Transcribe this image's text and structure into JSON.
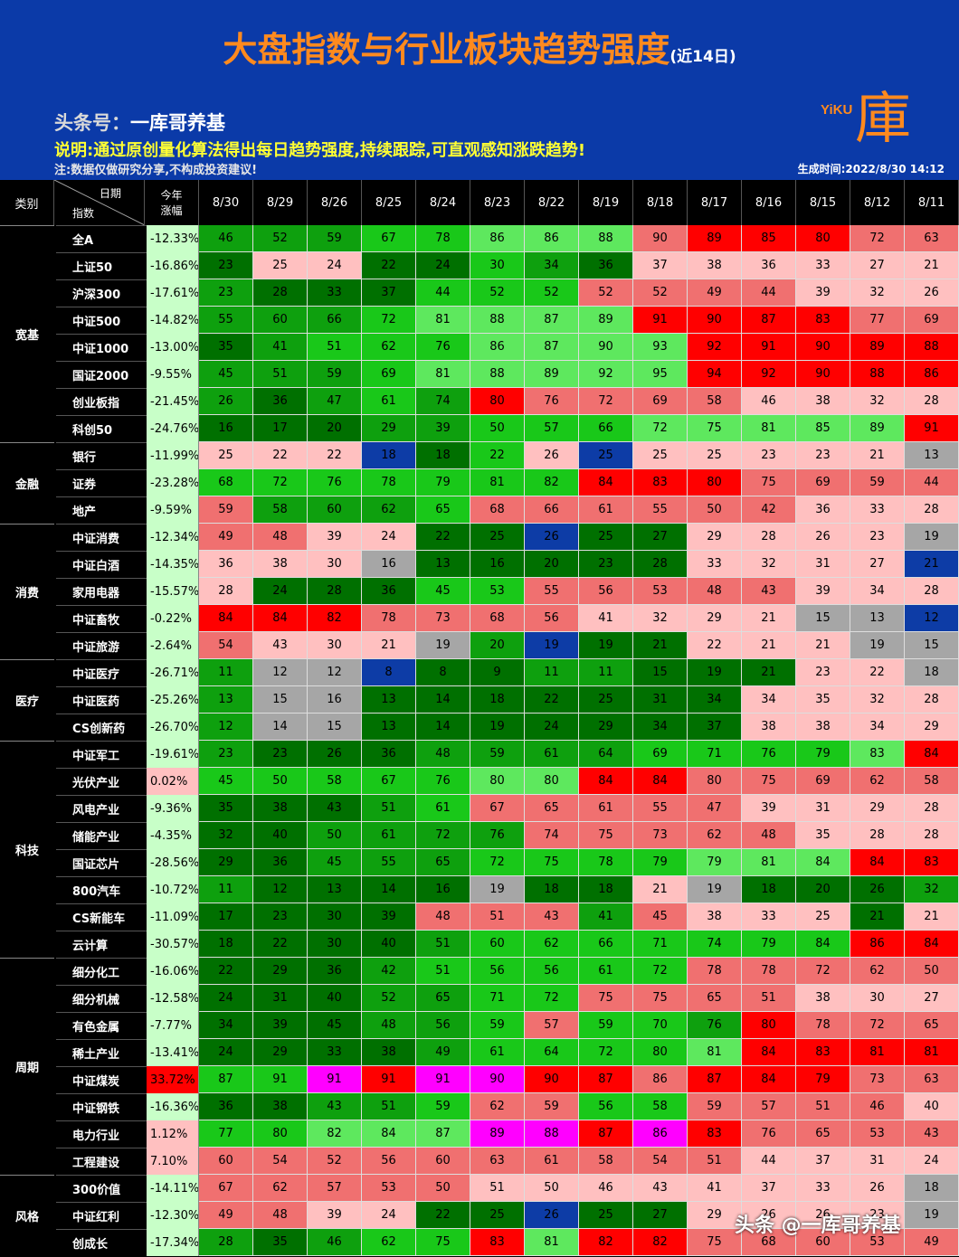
{
  "header": {
    "title": "大盘指数与行业板块趋势强度",
    "title_sub": "(近14日)",
    "author_key": "头条号：",
    "author_name": "一库哥养基",
    "note1": "说明:通过原创量化算法得出每日趋势强度,持续跟踪,可直观感知涨跌趋势!",
    "note2": "注:数据仅做研究分享,不构成投资建议!",
    "generated": "生成时间:2022/8/30 14:12",
    "logo_text": "YiKU",
    "logo_char": "庫"
  },
  "table_header": {
    "category": "类别",
    "date_label": "日期",
    "index_label": "指数",
    "ytd_line1": "今年",
    "ytd_line2": "涨幅",
    "dates": [
      "8/30",
      "8/29",
      "8/26",
      "8/25",
      "8/24",
      "8/23",
      "8/22",
      "8/19",
      "8/18",
      "8/17",
      "8/16",
      "8/15",
      "8/12",
      "8/11"
    ]
  },
  "colors": {
    "G": "#007000",
    "g": "#0ea00e",
    "l": "#19c819",
    "p": "#5ee85e",
    "r": "#ff0000",
    "m": "#f07070",
    "k": "#ffc0c0",
    "s": "#a6a6a6",
    "b": "#0d3ca6",
    "u": "#ff00ff"
  },
  "chart_data": {
    "type": "heatmap",
    "title": "大盘指数与行业板块趋势强度",
    "columns": [
      "8/30",
      "8/29",
      "8/26",
      "8/25",
      "8/24",
      "8/23",
      "8/22",
      "8/19",
      "8/18",
      "8/17",
      "8/16",
      "8/15",
      "8/12",
      "8/11"
    ],
    "groups": [
      {
        "name": "宽基",
        "rows": [
          {
            "name": "全A",
            "ytd": "-12.33%",
            "values": [
              46,
              52,
              59,
              67,
              78,
              86,
              86,
              88,
              90,
              89,
              85,
              80,
              72,
              63
            ],
            "colors": "gggllpppmrrrmm"
          },
          {
            "name": "上证50",
            "ytd": "-16.86%",
            "values": [
              23,
              25,
              24,
              22,
              24,
              30,
              34,
              36,
              37,
              38,
              36,
              33,
              27,
              21
            ],
            "colors": "GkkGGlgGkkkkkk"
          },
          {
            "name": "沪深300",
            "ytd": "-17.61%",
            "values": [
              23,
              28,
              33,
              37,
              44,
              52,
              52,
              52,
              52,
              49,
              44,
              39,
              32,
              26
            ],
            "colors": "gGGGlllmmmmkkk"
          },
          {
            "name": "中证500",
            "ytd": "-14.82%",
            "values": [
              55,
              60,
              66,
              72,
              81,
              88,
              87,
              89,
              91,
              90,
              87,
              83,
              77,
              69
            ],
            "colors": "ggglpppprrrrmm"
          },
          {
            "name": "中证1000",
            "ytd": "-13.00%",
            "values": [
              35,
              41,
              51,
              62,
              76,
              86,
              87,
              90,
              93,
              92,
              91,
              90,
              89,
              88
            ],
            "colors": "Gglllpppprrrrr"
          },
          {
            "name": "国证2000",
            "ytd": "-9.55%",
            "values": [
              45,
              51,
              59,
              69,
              81,
              88,
              89,
              92,
              95,
              94,
              92,
              90,
              88,
              86
            ],
            "colors": "ggglppppprrrrr"
          },
          {
            "name": "创业板指",
            "ytd": "-21.45%",
            "values": [
              26,
              36,
              47,
              61,
              74,
              80,
              76,
              72,
              69,
              58,
              46,
              38,
              32,
              28
            ],
            "colors": "gGglgrmmmmkkkk"
          },
          {
            "name": "科创50",
            "ytd": "-24.76%",
            "values": [
              16,
              17,
              20,
              29,
              39,
              50,
              57,
              66,
              72,
              75,
              81,
              85,
              89,
              91
            ],
            "colors": "GGGgglllpppppr"
          }
        ]
      },
      {
        "name": "金融",
        "rows": [
          {
            "name": "银行",
            "ytd": "-11.99%",
            "values": [
              25,
              22,
              22,
              18,
              18,
              22,
              26,
              25,
              25,
              25,
              23,
              23,
              21,
              13
            ],
            "colors": "kkkbGlkbkkkkks"
          },
          {
            "name": "证券",
            "ytd": "-23.28%",
            "values": [
              68,
              72,
              76,
              78,
              79,
              81,
              82,
              84,
              83,
              80,
              75,
              69,
              59,
              44
            ],
            "colors": "lllllllrrrmmmm"
          },
          {
            "name": "地产",
            "ytd": "-9.59%",
            "values": [
              59,
              58,
              60,
              62,
              65,
              68,
              66,
              61,
              55,
              50,
              42,
              36,
              33,
              28
            ],
            "colors": "mggglmmmmmmkkk"
          }
        ]
      },
      {
        "name": "消费",
        "rows": [
          {
            "name": "中证消费",
            "ytd": "-12.34%",
            "values": [
              49,
              48,
              39,
              24,
              22,
              25,
              26,
              25,
              27,
              29,
              28,
              26,
              23,
              19
            ],
            "colors": "mmkkGGbGGkkkks"
          },
          {
            "name": "中证白酒",
            "ytd": "-14.35%",
            "values": [
              36,
              38,
              30,
              16,
              13,
              16,
              20,
              23,
              28,
              33,
              32,
              31,
              27,
              21
            ],
            "colors": "kkksGGGGGkkkkb"
          },
          {
            "name": "家用电器",
            "ytd": "-15.57%",
            "values": [
              28,
              24,
              28,
              36,
              45,
              53,
              55,
              56,
              53,
              48,
              43,
              39,
              34,
              28
            ],
            "colors": "kGGGllmmmmmkkk"
          },
          {
            "name": "中证畜牧",
            "ytd": "-0.22%",
            "values": [
              84,
              84,
              82,
              78,
              73,
              68,
              56,
              41,
              32,
              29,
              21,
              15,
              13,
              12
            ],
            "colors": "rrrmmmmkkkkssb"
          },
          {
            "name": "中证旅游",
            "ytd": "-2.64%",
            "values": [
              54,
              43,
              30,
              21,
              19,
              20,
              19,
              19,
              21,
              22,
              21,
              21,
              19,
              15
            ],
            "colors": "mkkksgbGGkkkss"
          }
        ]
      },
      {
        "name": "医疗",
        "rows": [
          {
            "name": "中证医疗",
            "ytd": "-26.71%",
            "values": [
              11,
              12,
              12,
              8,
              8,
              9,
              11,
              11,
              15,
              19,
              21,
              23,
              22,
              18
            ],
            "colors": "gssbGGggGGGkks"
          },
          {
            "name": "中证医药",
            "ytd": "-25.26%",
            "values": [
              13,
              15,
              16,
              13,
              14,
              18,
              22,
              25,
              31,
              34,
              34,
              35,
              32,
              28
            ],
            "colors": "gssGGGGGGGkkkk"
          },
          {
            "name": "CS创新药",
            "ytd": "-26.70%",
            "values": [
              12,
              14,
              15,
              13,
              14,
              19,
              24,
              29,
              34,
              37,
              38,
              38,
              34,
              29
            ],
            "colors": "gssGGGGGGGkkkk"
          }
        ]
      },
      {
        "name": "科技",
        "rows": [
          {
            "name": "中证军工",
            "ytd": "-19.61%",
            "values": [
              23,
              23,
              26,
              36,
              48,
              59,
              61,
              64,
              69,
              71,
              76,
              79,
              83,
              84
            ],
            "colors": "gGGGggggllllpr"
          },
          {
            "name": "光伏产业",
            "ytd": "0.02%",
            "values": [
              45,
              50,
              58,
              67,
              76,
              80,
              80,
              84,
              84,
              80,
              75,
              69,
              62,
              58
            ],
            "colors": "lllllpprrmmmmm"
          },
          {
            "name": "风电产业",
            "ytd": "-9.36%",
            "values": [
              35,
              38,
              43,
              51,
              61,
              67,
              65,
              61,
              55,
              47,
              39,
              31,
              29,
              28
            ],
            "colors": "GGGglmmmmmkkkk"
          },
          {
            "name": "储能产业",
            "ytd": "-4.35%",
            "values": [
              32,
              40,
              50,
              61,
              72,
              76,
              74,
              75,
              73,
              62,
              48,
              35,
              28,
              28
            ],
            "colors": "GGggggmmmmmkkk"
          },
          {
            "name": "国证芯片",
            "ytd": "-28.56%",
            "values": [
              29,
              36,
              45,
              55,
              65,
              72,
              75,
              78,
              79,
              79,
              81,
              84,
              84,
              83
            ],
            "colors": "GGgggllllppprr"
          },
          {
            "name": "800汽车",
            "ytd": "-10.72%",
            "values": [
              11,
              12,
              13,
              14,
              16,
              19,
              18,
              18,
              21,
              19,
              18,
              20,
              26,
              32
            ],
            "colors": "gGGGGsGGksGGGg"
          },
          {
            "name": "CS新能车",
            "ytd": "-11.09%",
            "values": [
              17,
              23,
              30,
              39,
              48,
              51,
              43,
              41,
              45,
              38,
              33,
              25,
              21,
              21
            ],
            "colors": "GGGGmmmgmkkkGk"
          },
          {
            "name": "云计算",
            "ytd": "-30.57%",
            "values": [
              18,
              22,
              30,
              40,
              51,
              60,
              62,
              66,
              71,
              74,
              79,
              84,
              86,
              84
            ],
            "colors": "GGGGglllllllrr"
          }
        ]
      },
      {
        "name": "周期",
        "rows": [
          {
            "name": "细分化工",
            "ytd": "-16.06%",
            "values": [
              22,
              29,
              36,
              42,
              51,
              56,
              56,
              61,
              72,
              78,
              78,
              72,
              62,
              50
            ],
            "colors": "GGGglllllmmmmm"
          },
          {
            "name": "细分机械",
            "ytd": "-12.58%",
            "values": [
              24,
              31,
              40,
              52,
              65,
              71,
              72,
              75,
              75,
              65,
              51,
              38,
              30,
              27
            ],
            "colors": "GGGggllmmmmkkk"
          },
          {
            "name": "有色金属",
            "ytd": "-7.77%",
            "values": [
              34,
              39,
              45,
              48,
              56,
              59,
              57,
              59,
              70,
              76,
              80,
              78,
              72,
              65
            ],
            "colors": "GGGgglmllgrmmm"
          },
          {
            "name": "稀土产业",
            "ytd": "-13.41%",
            "values": [
              24,
              29,
              33,
              38,
              49,
              61,
              64,
              72,
              80,
              81,
              84,
              83,
              81,
              81
            ],
            "colors": "GGGGgllllprrrr"
          },
          {
            "name": "中证煤炭",
            "ytd": "33.72%",
            "values": [
              87,
              91,
              91,
              91,
              91,
              90,
              90,
              87,
              86,
              87,
              84,
              79,
              73,
              63
            ],
            "colors": "lluruurrmrrrmm"
          },
          {
            "name": "中证钢铁",
            "ytd": "-16.36%",
            "values": [
              36,
              38,
              43,
              51,
              59,
              62,
              59,
              56,
              58,
              59,
              57,
              51,
              46,
              40
            ],
            "colors": "GGgglmmllmmmmk"
          },
          {
            "name": "电力行业",
            "ytd": "1.12%",
            "values": [
              77,
              80,
              82,
              84,
              87,
              89,
              88,
              87,
              86,
              83,
              76,
              65,
              53,
              43
            ],
            "colors": "llpppuururmmmm"
          },
          {
            "name": "工程建设",
            "ytd": "7.10%",
            "values": [
              60,
              54,
              52,
              56,
              60,
              63,
              61,
              58,
              54,
              51,
              44,
              37,
              31,
              24
            ],
            "colors": "mmmmmmmmmmkkkk"
          }
        ]
      },
      {
        "name": "风格",
        "rows": [
          {
            "name": "300价值",
            "ytd": "-14.11%",
            "values": [
              67,
              62,
              57,
              53,
              50,
              51,
              50,
              46,
              43,
              41,
              37,
              33,
              26,
              18
            ],
            "colors": "mmmmmkkkkkkkks"
          },
          {
            "name": "中证红利",
            "ytd": "-12.30%",
            "values": [
              49,
              48,
              39,
              24,
              22,
              25,
              26,
              25,
              27,
              29,
              26,
              26,
              23,
              19
            ],
            "colors": "mmkkGGbGGkkkks"
          },
          {
            "name": "创成长",
            "ytd": "-17.34%",
            "values": [
              28,
              35,
              46,
              62,
              75,
              83,
              81,
              82,
              82,
              75,
              68,
              60,
              53,
              49
            ],
            "colors": "gGgllrprrmmmmm"
          }
        ]
      }
    ]
  },
  "watermark": "头条 @一库哥养基"
}
